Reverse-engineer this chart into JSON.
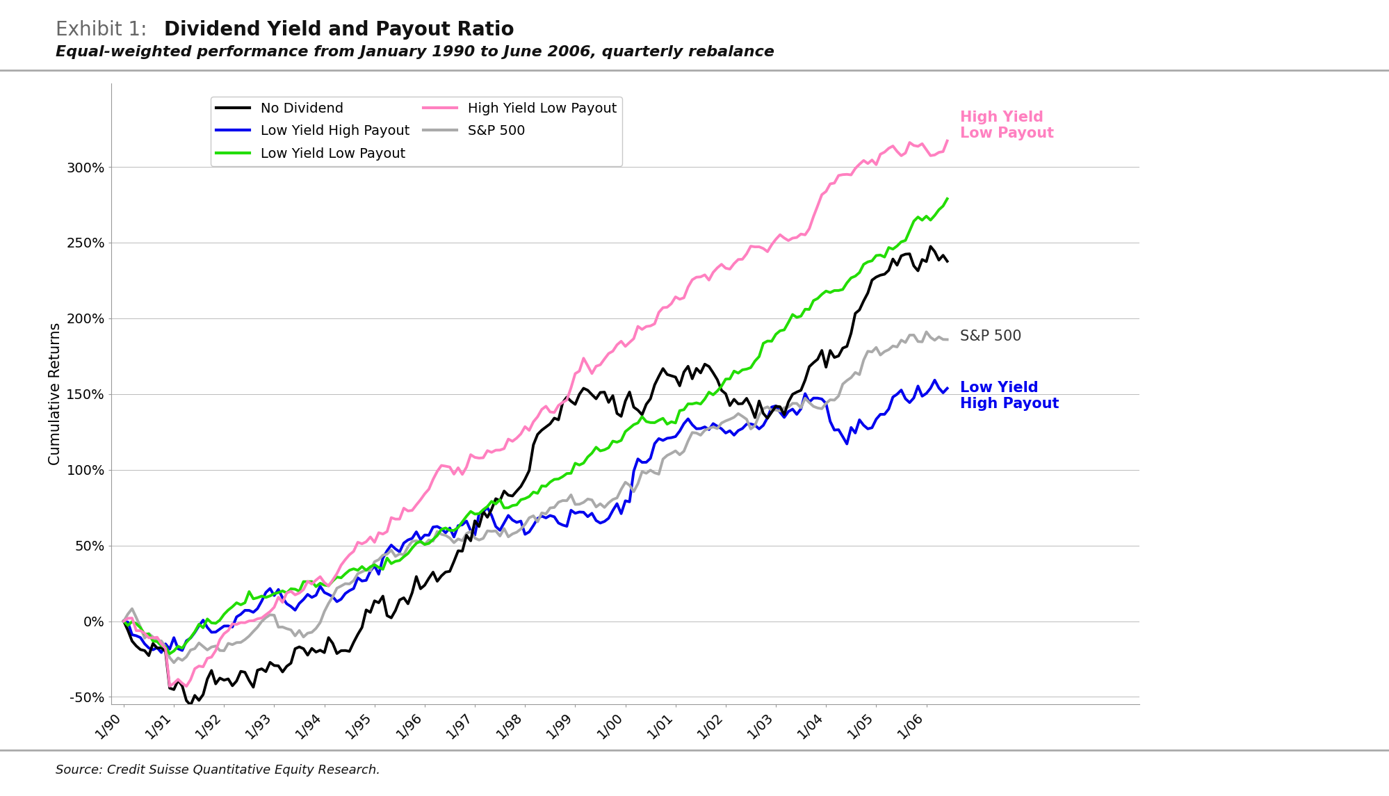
{
  "title_prefix": "Exhibit 1: ",
  "title_bold": "Dividend Yield and Payout Ratio",
  "subtitle": "Equal-weighted performance from January 1990 to June 2006, quarterly rebalance",
  "ylabel": "Cumulative Returns",
  "source": "Source: Credit Suisse Quantitative Equity Research.",
  "ylim": [
    -0.55,
    3.55
  ],
  "yticks": [
    -0.5,
    0.0,
    0.5,
    1.0,
    1.5,
    2.0,
    2.5,
    3.0
  ],
  "ytick_labels": [
    "-50%",
    "0%",
    "50%",
    "100%",
    "150%",
    "200%",
    "250%",
    "300%"
  ],
  "xtick_labels": [
    "1/90",
    "1/91",
    "1/92",
    "1/93",
    "1/94",
    "1/95",
    "1/96",
    "1/97",
    "1/98",
    "1/99",
    "1/00",
    "1/01",
    "1/02",
    "1/03",
    "1/04",
    "1/05",
    "1/06"
  ],
  "series": {
    "no_dividend": {
      "color": "#000000",
      "label": "No Dividend",
      "linewidth": 2.8
    },
    "low_yield_low_payout": {
      "color": "#22dd00",
      "label": "Low Yield Low Payout",
      "linewidth": 2.8
    },
    "sp500": {
      "color": "#aaaaaa",
      "label": "S&P 500",
      "linewidth": 2.8
    },
    "low_yield_high_payout": {
      "color": "#0000ee",
      "label": "Low Yield High Payout",
      "linewidth": 2.8
    },
    "high_yield_low_payout": {
      "color": "#ff80c0",
      "label": "High Yield Low Payout",
      "linewidth": 2.8
    }
  },
  "legend_fontsize": 14,
  "background_color": "#ffffff",
  "grid_color": "#bbbbbb",
  "title_fontsize": 20,
  "subtitle_fontsize": 16,
  "ylabel_fontsize": 15,
  "tick_fontsize": 14,
  "annotation_fontsize": 15
}
